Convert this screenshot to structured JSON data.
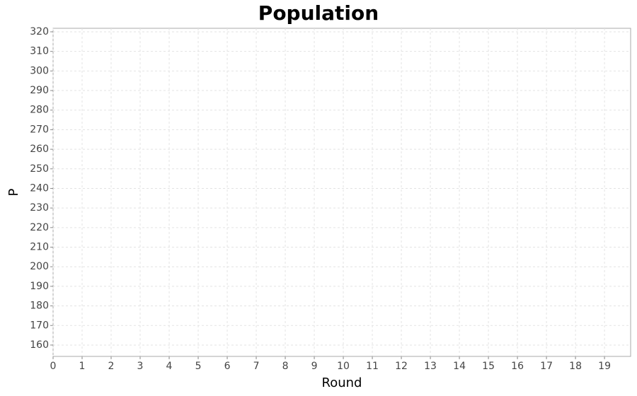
{
  "chart_data": {
    "type": "line",
    "title": "Population",
    "x_label": "Round",
    "y_label": "P",
    "series": [],
    "xlim": [
      0,
      19.9
    ],
    "xticks": [
      0,
      1,
      2,
      3,
      4,
      5,
      6,
      7,
      8,
      9,
      10,
      11,
      12,
      13,
      14,
      15,
      16,
      17,
      18,
      19
    ],
    "ylim": [
      154.2,
      321.8
    ],
    "yticks": [
      160,
      170,
      180,
      190,
      200,
      210,
      220,
      230,
      240,
      250,
      260,
      270,
      280,
      290,
      300,
      310,
      320
    ],
    "grid": true
  }
}
